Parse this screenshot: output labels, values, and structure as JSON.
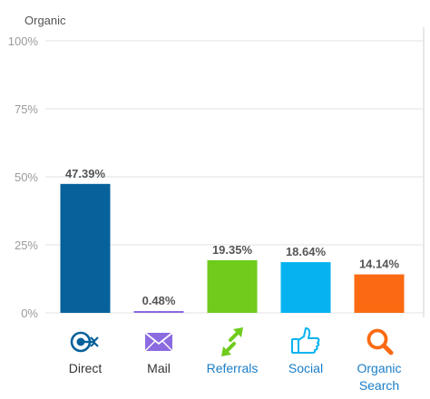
{
  "colors": {
    "direct": "#07619b",
    "mail": "#8c6ae0",
    "referrals": "#6fcb1c",
    "social": "#06b3f0",
    "organic": "#fb6a13",
    "grid": "#e3e3e3",
    "right_border": "#cfcfcf"
  },
  "chart_data": {
    "type": "bar",
    "title": "Organic",
    "ylim": [
      0,
      100
    ],
    "yticks": [
      "0%",
      "25%",
      "50%",
      "75%",
      "100%"
    ],
    "ytick_values": [
      0,
      25,
      50,
      75,
      100
    ],
    "grid": true,
    "categories": [
      "Direct",
      "Mail",
      "Referrals",
      "Social",
      "Organic Search"
    ],
    "category_lines": [
      [
        "Direct"
      ],
      [
        "Mail"
      ],
      [
        "Referrals"
      ],
      [
        "Social"
      ],
      [
        "Organic",
        "Search"
      ]
    ],
    "values": [
      47.39,
      0.48,
      19.35,
      18.64,
      14.14
    ],
    "value_labels": [
      "47.39%",
      "0.48%",
      "19.35%",
      "18.64%",
      "14.14%"
    ],
    "bar_colors": [
      "#07619b",
      "#8c6ae0",
      "#6fcb1c",
      "#06b3f0",
      "#fb6a13"
    ],
    "label_colors": [
      "#333333",
      "#333333",
      "#1a7ec8",
      "#1a7ec8",
      "#1a7ec8"
    ],
    "icons": [
      "direct-target-icon",
      "mail-envelope-icon",
      "referrals-arrows-icon",
      "social-thumbs-up-icon",
      "organic-search-magnifier-icon"
    ]
  }
}
